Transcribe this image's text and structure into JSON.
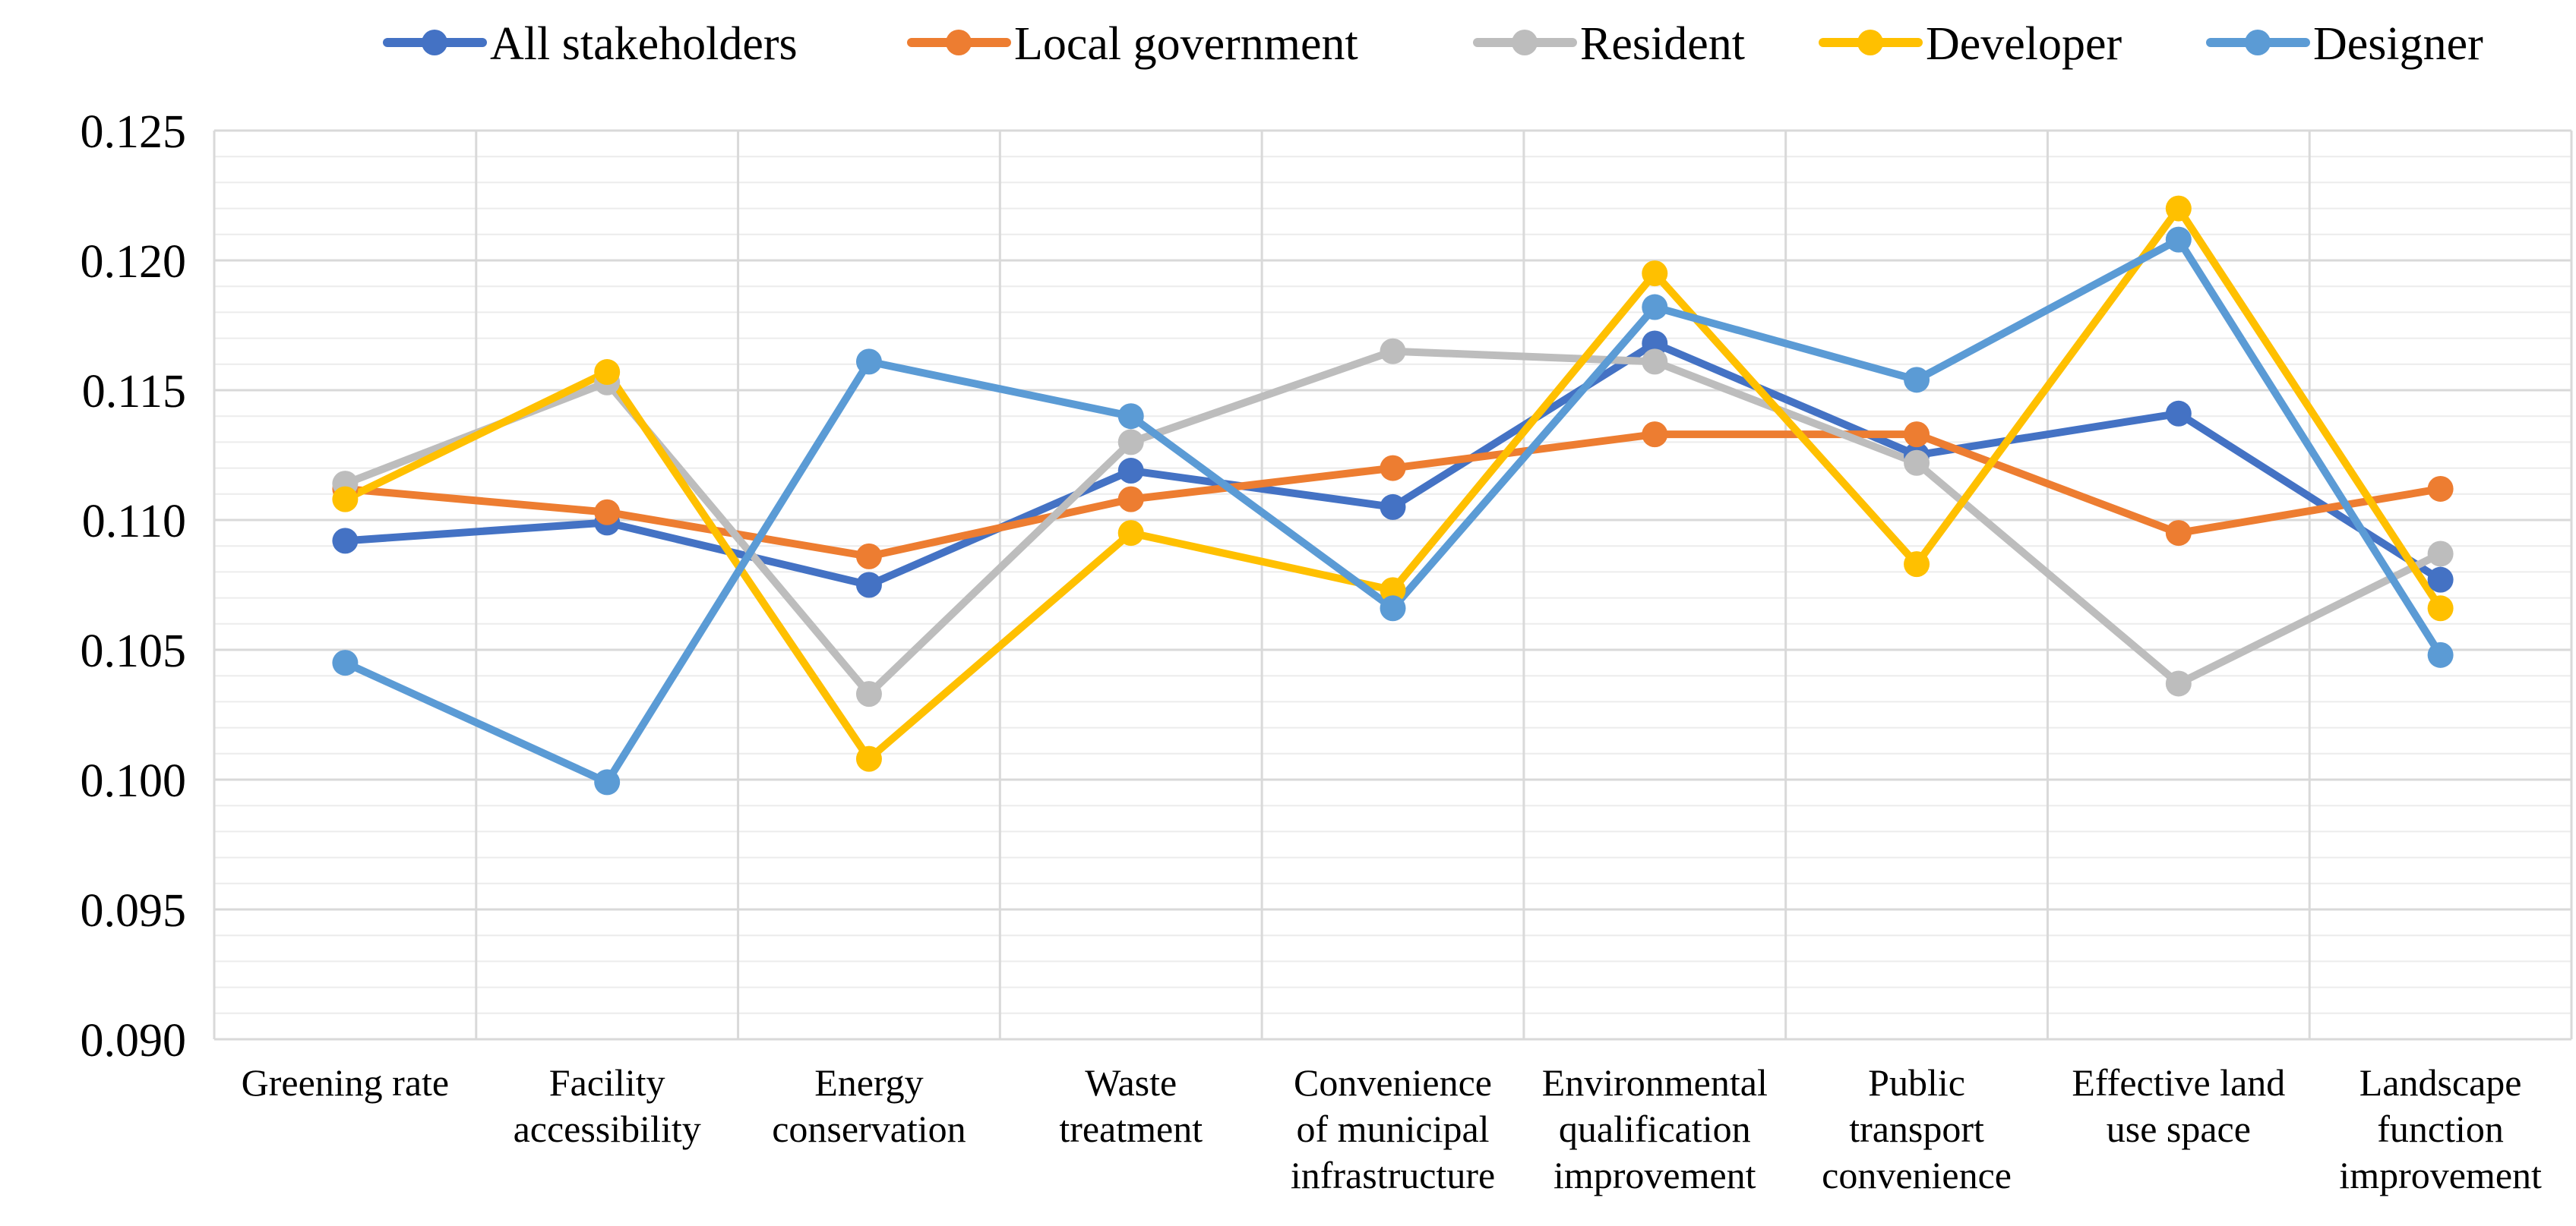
{
  "chart_data": {
    "type": "line",
    "title": "",
    "xlabel": "",
    "ylabel": "",
    "ylim": [
      0.09,
      0.125
    ],
    "yticks": [
      "0.090",
      "0.095",
      "0.100",
      "0.105",
      "0.110",
      "0.115",
      "0.120",
      "0.125"
    ],
    "grid": "major and minor horizontal, major vertical",
    "legend": "top",
    "categories": [
      [
        "Greening rate"
      ],
      [
        "Facility",
        "accessibility"
      ],
      [
        "Energy",
        "conservation"
      ],
      [
        "Waste",
        "treatment"
      ],
      [
        "Convenience",
        "of municipal",
        "infrastructure"
      ],
      [
        "Environmental",
        "qualification",
        "improvement"
      ],
      [
        "Public",
        "transport",
        "convenience"
      ],
      [
        "Effective land",
        "use space"
      ],
      [
        "Landscape",
        "function",
        "improvement"
      ]
    ],
    "series": [
      {
        "name": "All stakeholders",
        "color": "#4472C4",
        "values": [
          0.1092,
          0.1099,
          0.1075,
          0.1119,
          0.1105,
          0.1168,
          0.1125,
          0.1141,
          0.1077
        ]
      },
      {
        "name": "Local government",
        "color": "#ED7D31",
        "values": [
          0.1112,
          0.1103,
          0.1086,
          0.1108,
          0.112,
          0.1133,
          0.1133,
          0.1095,
          0.1112
        ]
      },
      {
        "name": "Resident",
        "color": "#BDBDBD",
        "values": [
          0.1114,
          0.1153,
          0.1033,
          0.113,
          0.1165,
          0.1161,
          0.1122,
          0.1037,
          0.1087
        ]
      },
      {
        "name": "Developer",
        "color": "#FFC000",
        "values": [
          0.1108,
          0.1157,
          0.1008,
          0.1095,
          0.1073,
          0.1195,
          0.1083,
          0.122,
          0.1066
        ]
      },
      {
        "name": "Designer",
        "color": "#5B9BD5",
        "values": [
          0.1045,
          0.0999,
          0.1161,
          0.114,
          0.1066,
          0.1182,
          0.1154,
          0.1208,
          0.1048
        ]
      }
    ]
  }
}
